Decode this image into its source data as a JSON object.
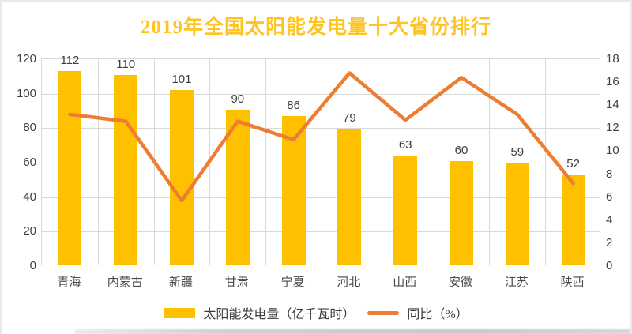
{
  "title": {
    "text": "2019年全国太阳能发电量十大省份排行",
    "color": "#ffc420"
  },
  "chart_data": {
    "type": "bar",
    "subtype": "combo-bar-line-dual-axis",
    "categories": [
      "青海",
      "内蒙古",
      "新疆",
      "甘肃",
      "宁夏",
      "河北",
      "山西",
      "安徽",
      "江苏",
      "陕西"
    ],
    "series": [
      {
        "name": "太阳能发电量（亿千瓦时）",
        "type": "bar",
        "axis": "left",
        "color": "#FFC000",
        "values": [
          112,
          110,
          101,
          90,
          86,
          79,
          63,
          60,
          59,
          52
        ],
        "data_labels": [
          "112",
          "110",
          "101",
          "90",
          "86",
          "79",
          "63",
          "60",
          "59",
          "52"
        ]
      },
      {
        "name": "同比（%）",
        "type": "line",
        "axis": "right",
        "color": "#ED7D31",
        "values": [
          13.2,
          12.6,
          5.7,
          12.6,
          11.0,
          16.8,
          12.7,
          16.4,
          13.2,
          7.2
        ]
      }
    ],
    "left_axis": {
      "min": 0,
      "max": 120,
      "step": 20,
      "ticks": [
        0,
        20,
        40,
        60,
        80,
        100,
        120
      ]
    },
    "right_axis": {
      "min": 0,
      "max": 18,
      "step": 2,
      "ticks": [
        0,
        2,
        4,
        6,
        8,
        10,
        12,
        14,
        16,
        18
      ]
    },
    "grid": "horizontal and vertical, light gray",
    "legend_position": "bottom"
  },
  "legend": {
    "items": [
      {
        "label": "太阳能发电量（亿千瓦时）",
        "swatch": "bar",
        "color": "#FFC000"
      },
      {
        "label": "同比（%）",
        "swatch": "line",
        "color": "#ED7D31"
      }
    ]
  },
  "style": {
    "gridline_color": "#d9d9d9",
    "label_color": "#3d3d3d",
    "title_color": "#ffc420"
  }
}
